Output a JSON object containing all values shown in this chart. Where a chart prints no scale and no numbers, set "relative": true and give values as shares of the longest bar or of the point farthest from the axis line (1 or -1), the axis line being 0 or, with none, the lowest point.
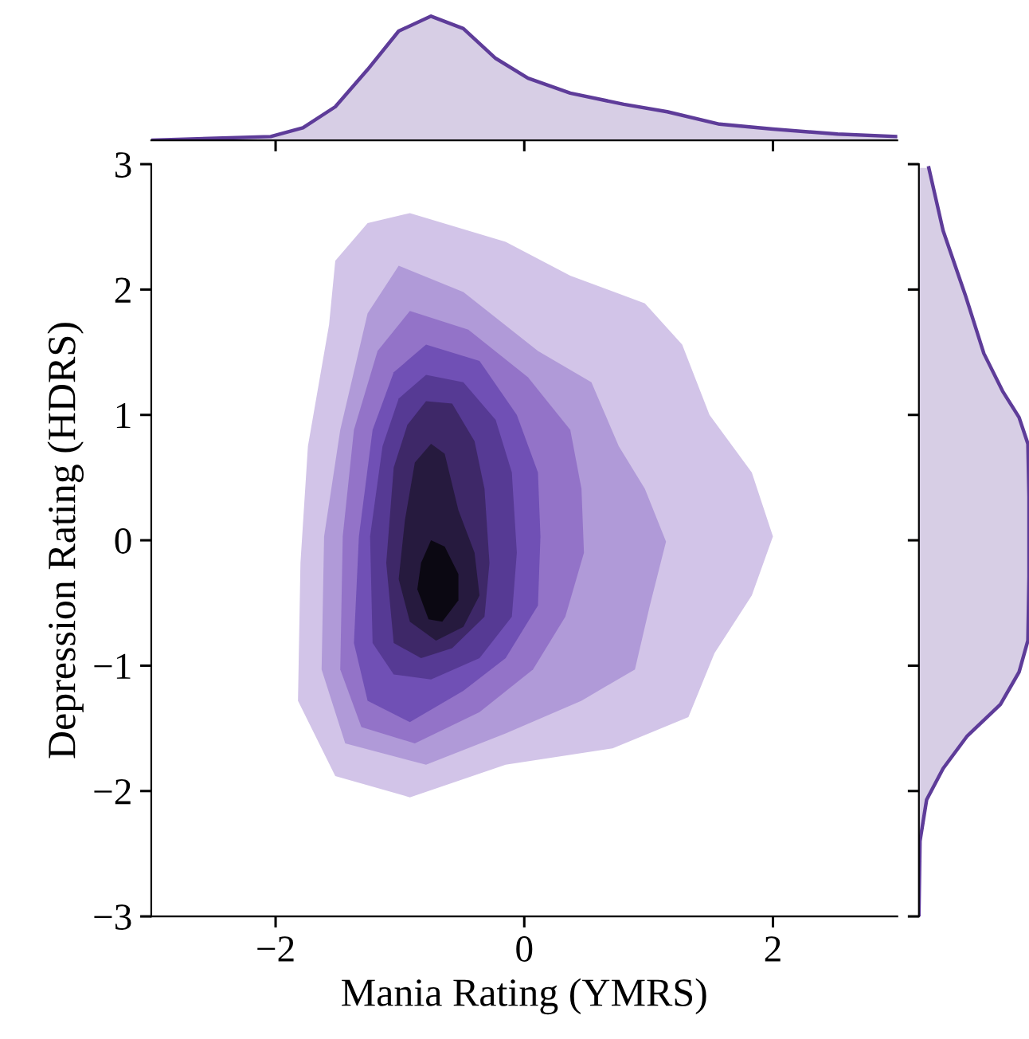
{
  "chart_data": [
    {
      "type": "area",
      "relative": true,
      "x": [
        -3.0,
        -2.04,
        -1.78,
        -1.52,
        -1.26,
        -1.01,
        -0.75,
        -0.49,
        -0.23,
        0.03,
        0.37,
        0.8,
        1.15,
        1.57,
        2.0,
        2.52,
        3.0
      ],
      "values": [
        0,
        0.03,
        0.1,
        0.27,
        0.57,
        0.88,
        1,
        0.9,
        0.66,
        0.5,
        0.38,
        0.29,
        0.23,
        0.13,
        0.09,
        0.05,
        0.03
      ],
      "color": "#5e3c99",
      "xlim": [
        -3,
        3
      ],
      "xticks": [
        {
          "value": -2,
          "label": null
        },
        {
          "value": 0,
          "label": null
        },
        {
          "value": 2,
          "label": null
        }
      ],
      "tick_labels": false
    },
    {
      "type": "area",
      "relative": true,
      "orientation": "horizontal",
      "x": [
        -3.0,
        -2.4,
        -2.07,
        -1.82,
        -1.56,
        -1.31,
        -1.05,
        -0.8,
        -0.29,
        0.35,
        0.77,
        0.98,
        1.19,
        1.49,
        1.96,
        2.47,
        2.97
      ],
      "values": [
        0,
        0.01,
        0.07,
        0.22,
        0.44,
        0.74,
        0.91,
        0.99,
        1,
        1,
        0.99,
        0.91,
        0.76,
        0.59,
        0.42,
        0.22,
        0.09
      ],
      "color": "#5e3c99",
      "ylim": [
        -3,
        3
      ],
      "yticks": [
        {
          "value": -3,
          "label": null
        },
        {
          "value": -2,
          "label": null
        },
        {
          "value": -1,
          "label": null
        },
        {
          "value": 0,
          "label": null
        },
        {
          "value": 1,
          "label": null
        },
        {
          "value": 2,
          "label": null
        },
        {
          "value": 3,
          "label": null
        }
      ],
      "tick_labels": false
    },
    {
      "type": "area",
      "xlabel": "Mania Rating (YMRS)",
      "ylabel": "Depression Rating (HDRS)",
      "xlim": [
        -3,
        3
      ],
      "ylim": [
        -3,
        3
      ],
      "xticks": [
        {
          "value": -2,
          "label": "−2"
        },
        0,
        2
      ],
      "yticks": [
        {
          "value": -3,
          "label": "−3"
        },
        {
          "value": -2,
          "label": "−2"
        },
        {
          "value": -1,
          "label": "−1"
        },
        0,
        1,
        2,
        3
      ],
      "series": [
        {
          "color": "#d2c4e8",
          "x": [
            -0.92,
            -0.15,
            0.37,
            0.97,
            1.27,
            1.49,
            1.83,
            2.0,
            1.83,
            1.53,
            1.32,
            0.71,
            -0.15,
            -0.92,
            -1.52,
            -1.82,
            -1.8,
            -1.74,
            -1.57,
            -1.52,
            -1.26
          ],
          "values": [
            2.61,
            2.38,
            2.11,
            1.89,
            1.56,
            1.0,
            0.54,
            0.03,
            -0.44,
            -0.9,
            -1.41,
            -1.66,
            -1.79,
            -2.05,
            -1.88,
            -1.28,
            -0.18,
            0.75,
            1.72,
            2.23,
            2.53
          ]
        },
        {
          "color": "#b09ad8",
          "x": [
            -1.01,
            -0.49,
            0.11,
            0.54,
            0.76,
            0.97,
            1.14,
            1.01,
            0.89,
            0.46,
            -0.15,
            -0.79,
            -1.44,
            -1.63,
            -1.61,
            -1.48,
            -1.26
          ],
          "values": [
            2.19,
            1.98,
            1.51,
            1.26,
            0.75,
            0.41,
            -0.01,
            -0.52,
            -1.03,
            -1.28,
            -1.54,
            -1.79,
            -1.62,
            -1.03,
            0.03,
            0.88,
            1.81
          ]
        },
        {
          "color": "#9373c8",
          "x": [
            -0.92,
            -0.45,
            0.03,
            0.37,
            0.46,
            0.48,
            0.33,
            0.07,
            -0.36,
            -0.88,
            -1.31,
            -1.48,
            -1.46,
            -1.37,
            -1.18
          ],
          "values": [
            1.83,
            1.68,
            1.3,
            0.88,
            0.41,
            -0.1,
            -0.61,
            -1.03,
            -1.37,
            -1.62,
            -1.49,
            -1.03,
            0.03,
            0.88,
            1.51
          ]
        },
        {
          "color": "#7050b5",
          "x": [
            -0.79,
            -0.36,
            -0.06,
            0.11,
            0.13,
            0.11,
            -0.15,
            -0.49,
            -0.92,
            -1.26,
            -1.37,
            -1.33,
            -1.22,
            -1.05
          ],
          "values": [
            1.56,
            1.43,
            1.0,
            0.54,
            0.03,
            -0.52,
            -0.94,
            -1.2,
            -1.45,
            -1.28,
            -0.82,
            0.03,
            0.88,
            1.34
          ]
        },
        {
          "color": "#563a94",
          "x": [
            -0.79,
            -0.49,
            -0.23,
            -0.1,
            -0.06,
            -0.1,
            -0.36,
            -0.75,
            -1.05,
            -1.22,
            -1.24,
            -1.14,
            -1.01
          ],
          "values": [
            1.32,
            1.26,
            0.96,
            0.54,
            -0.1,
            -0.61,
            -0.94,
            -1.11,
            -1.07,
            -0.82,
            0.03,
            0.75,
            1.13
          ]
        },
        {
          "color": "#3e2868",
          "x": [
            -0.79,
            -0.58,
            -0.4,
            -0.32,
            -0.28,
            -0.32,
            -0.58,
            -0.83,
            -1.05,
            -1.11,
            -1.05,
            -0.94
          ],
          "values": [
            1.11,
            1.09,
            0.79,
            0.41,
            -0.18,
            -0.61,
            -0.86,
            -0.94,
            -0.82,
            -0.18,
            0.58,
            0.92
          ]
        },
        {
          "color": "#261a3e",
          "x": [
            -0.75,
            -0.64,
            -0.53,
            -0.4,
            -0.36,
            -0.49,
            -0.71,
            -0.92,
            -1.01,
            -0.96,
            -0.88
          ],
          "values": [
            0.77,
            0.69,
            0.24,
            -0.1,
            -0.44,
            -0.69,
            -0.8,
            -0.65,
            -0.31,
            0.16,
            0.62
          ]
        },
        {
          "color": "#0b0812",
          "x": [
            -0.75,
            -0.64,
            -0.53,
            -0.53,
            -0.66,
            -0.77,
            -0.86,
            -0.83
          ],
          "values": [
            0.0,
            -0.05,
            -0.27,
            -0.48,
            -0.65,
            -0.63,
            -0.39,
            -0.18
          ]
        }
      ]
    }
  ]
}
